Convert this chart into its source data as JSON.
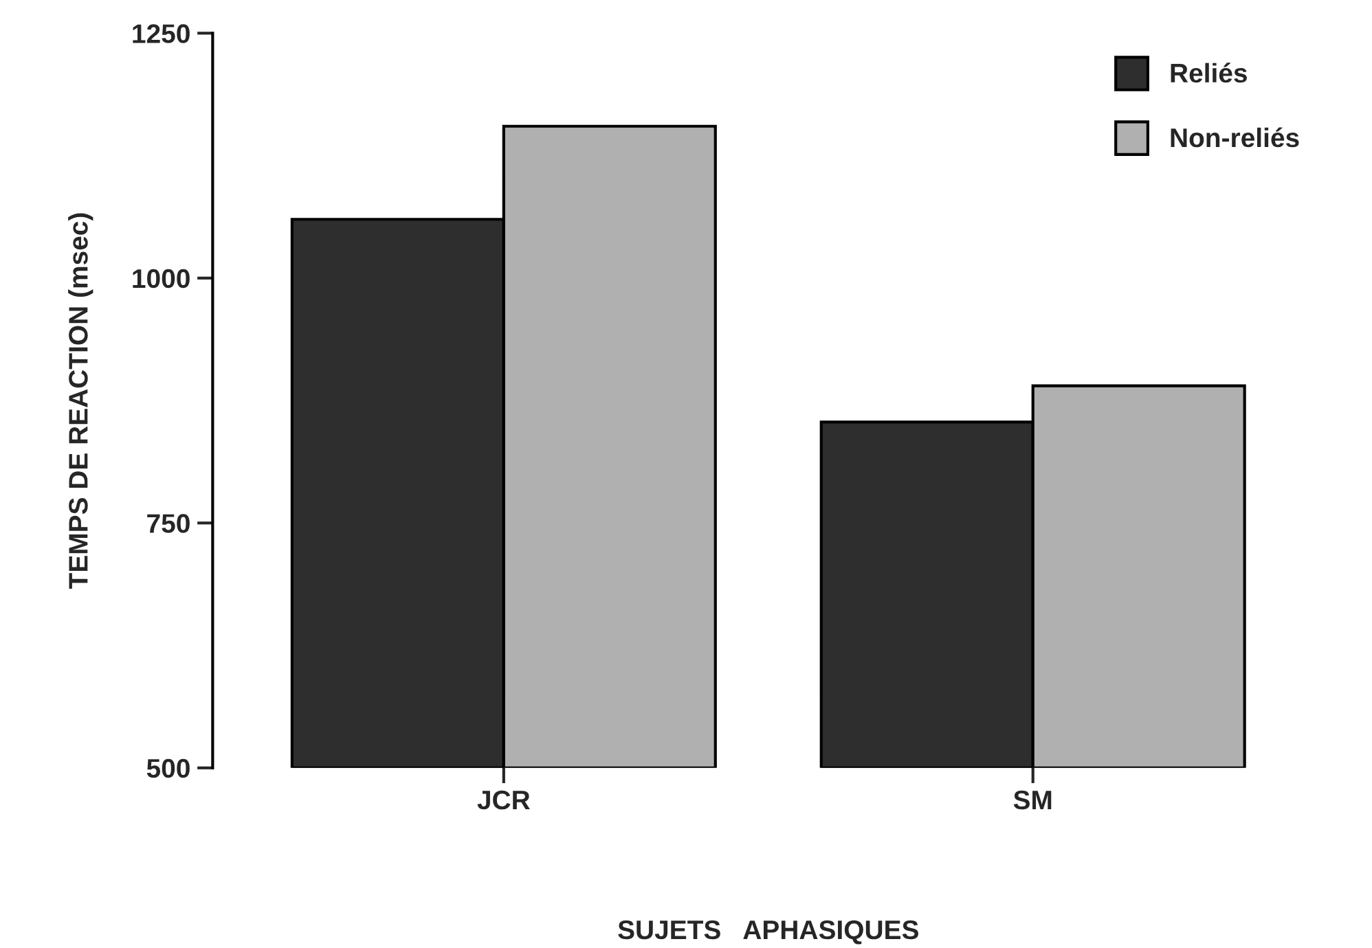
{
  "chart_data": {
    "type": "bar",
    "xlabel": "SUJETS   APHASIQUES",
    "ylabel": "TEMPS DE REACTION (msec)",
    "categories": [
      "JCR",
      "SM"
    ],
    "series": [
      {
        "name": "Reliés",
        "color": "#2e2e2e",
        "values": [
          1060,
          853
        ]
      },
      {
        "name": "Non-reliés",
        "color": "#b0b0b0",
        "values": [
          1155,
          890
        ]
      }
    ],
    "ylim": [
      500,
      1250
    ],
    "yticks": [
      500,
      750,
      1000,
      1250
    ],
    "legend": "top right",
    "grid": false
  }
}
